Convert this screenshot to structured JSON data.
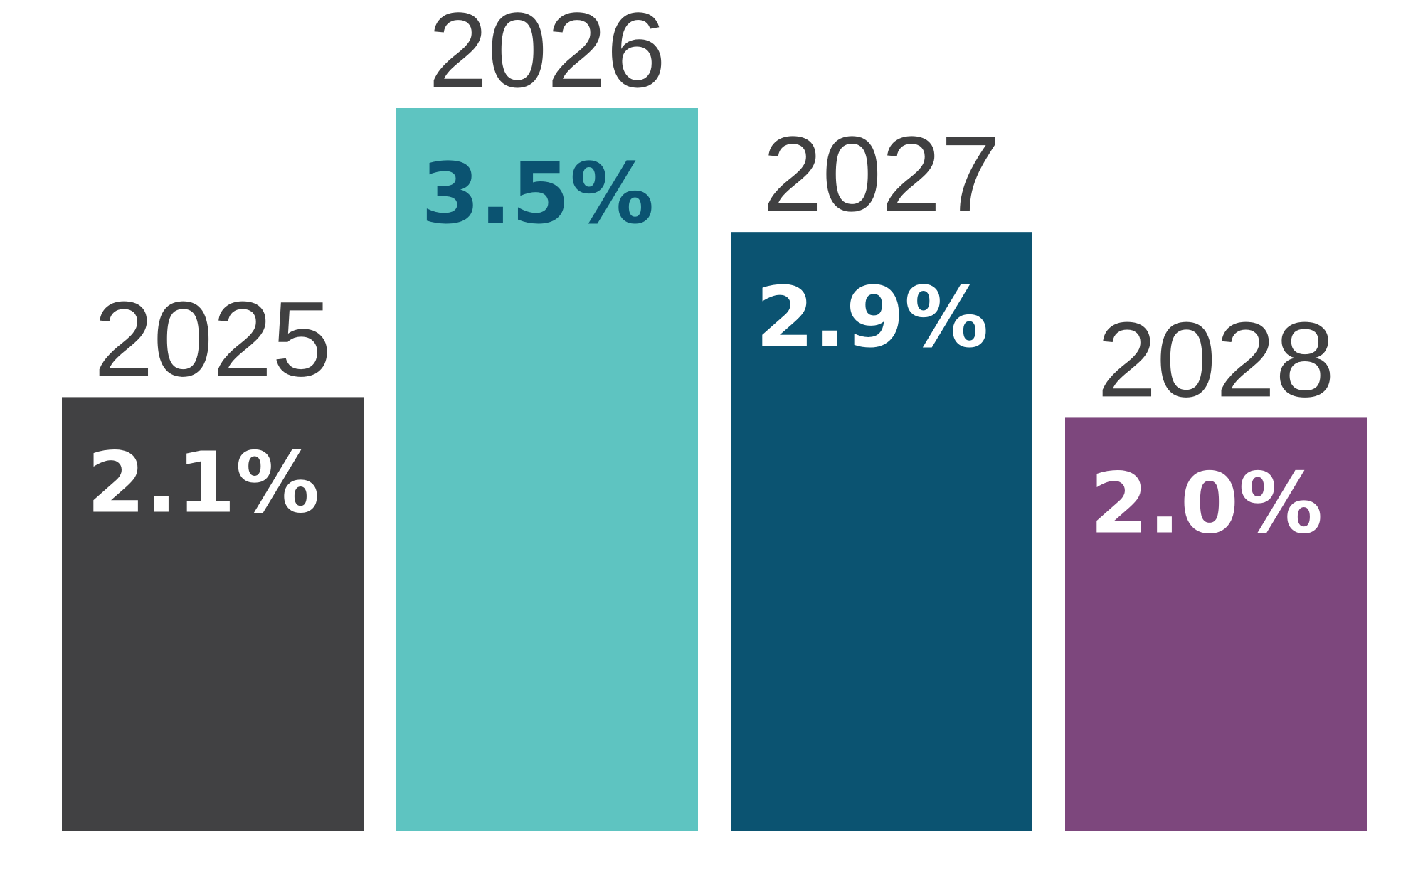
{
  "chart_data": {
    "type": "bar",
    "categories": [
      "2025",
      "2026",
      "2027",
      "2028"
    ],
    "values": [
      2.1,
      3.5,
      2.9,
      2.0
    ],
    "value_labels": [
      "2.1%",
      "3.5%",
      "2.9%",
      "2.0%"
    ],
    "bar_colors": [
      "#414143",
      "#5ec4c1",
      "#0b5371",
      "#7d477d"
    ],
    "value_label_colors": [
      "#ffffff",
      "#0b5371",
      "#ffffff",
      "#ffffff"
    ],
    "title": "",
    "xlabel": "",
    "ylabel": "",
    "ylim": [
      0,
      3.5
    ],
    "grid": false,
    "legend": "none"
  }
}
